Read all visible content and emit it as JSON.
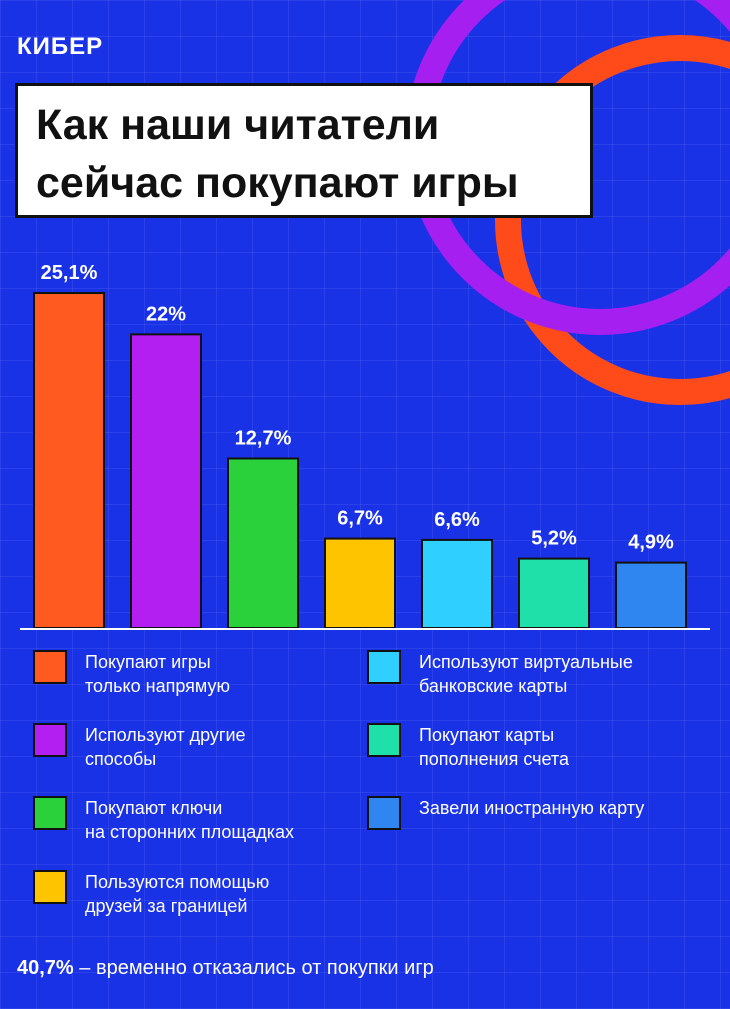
{
  "brand": {
    "logo": "КИБЕР"
  },
  "title_lines": [
    "Как наши читатели",
    "сейчас покупают игры"
  ],
  "chart_data": {
    "type": "bar",
    "title": "Как наши читатели сейчас покупают игры",
    "unit": "%",
    "categories": [
      "Покупают игры только напрямую",
      "Используют другие способы",
      "Покупают ключи на сторонних площадках",
      "Пользуются помощью друзей за границей",
      "Используют виртуальные банковские карты",
      "Покупают карты пополнения счета",
      "Завели иностранную карту"
    ],
    "values": [
      25.1,
      22,
      12.7,
      6.7,
      6.6,
      5.2,
      4.9
    ],
    "data_labels": [
      "25,1%",
      "22%",
      "12,7%",
      "6,7%",
      "6,6%",
      "5,2%",
      "4,9%"
    ],
    "colors": [
      "#ff5a1f",
      "#b21ff0",
      "#2bd13a",
      "#ffc400",
      "#2fd0ff",
      "#1fe0a8",
      "#2f86f0"
    ],
    "ylim": [
      0,
      25.1
    ],
    "xlabel": "",
    "ylabel": "",
    "grid": false,
    "legend": "bottom"
  },
  "legend": [
    {
      "lines": [
        "Покупают игры",
        "только напрямую"
      ],
      "color": "#ff5a1f"
    },
    {
      "lines": [
        "Используют другие",
        "способы"
      ],
      "color": "#b21ff0"
    },
    {
      "lines": [
        "Покупают ключи",
        "на сторонних площадках"
      ],
      "color": "#2bd13a"
    },
    {
      "lines": [
        "Пользуются помощью",
        "друзей за границей"
      ],
      "color": "#ffc400"
    },
    {
      "lines": [
        "Используют виртуальные",
        "банковские карты"
      ],
      "color": "#2fd0ff"
    },
    {
      "lines": [
        "Покупают карты",
        "пополнения счета"
      ],
      "color": "#1fe0a8"
    },
    {
      "lines": [
        "Завели иностранную карту"
      ],
      "color": "#2f86f0"
    }
  ],
  "footer": {
    "value": "40,7%",
    "text": " – временно отказались от покупки игр"
  },
  "decor": {
    "ring_colors": [
      "#ff4a1a",
      "#a51ff0"
    ],
    "background": "#1a32e6"
  }
}
